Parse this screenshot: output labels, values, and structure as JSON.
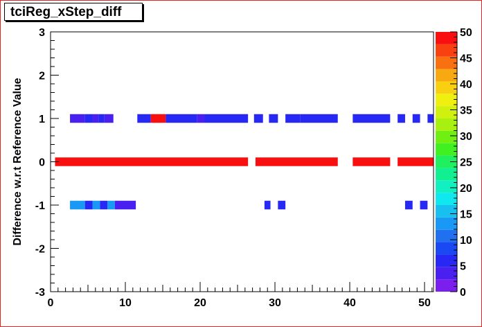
{
  "chart_data": {
    "type": "heatmap",
    "title": "tciReg_xStep_diff",
    "ylabel": "Difference w.r.t Reference Value",
    "xlabel": "",
    "xlim": [
      0,
      51.2
    ],
    "ylim": [
      -3,
      3
    ],
    "xticks": [
      "0",
      "10",
      "20",
      "30",
      "40",
      "50"
    ],
    "yticks": [
      "-3",
      "-2",
      "-1",
      "0",
      "1",
      "2",
      "3"
    ],
    "palette_scale": {
      "min": 0,
      "max": 50,
      "labels": [
        "0",
        "5",
        "10",
        "15",
        "20",
        "25",
        "30",
        "35",
        "40",
        "45",
        "50"
      ],
      "colors": [
        "#7a1fee",
        "#4a20f0",
        "#2828f5",
        "#1a48f2",
        "#2070f0",
        "#1a98f5",
        "#18c0f0",
        "#10e8f0",
        "#10f0c0",
        "#10f090",
        "#20f060",
        "#40f020",
        "#70f010",
        "#a8f010",
        "#d0f010",
        "#f0f010",
        "#f8d010",
        "#f8a810",
        "#f87010",
        "#f84010",
        "#f81010"
      ]
    },
    "cells": [
      {
        "y": 1,
        "x0": 2.6,
        "x1": 4.6,
        "value": 3
      },
      {
        "y": 1,
        "x0": 4.6,
        "x1": 5.6,
        "value": 5
      },
      {
        "y": 1,
        "x0": 5.6,
        "x1": 6.4,
        "value": 3
      },
      {
        "y": 1,
        "x0": 6.4,
        "x1": 7.2,
        "value": 5
      },
      {
        "y": 1,
        "x0": 7.2,
        "x1": 8.4,
        "value": 3
      },
      {
        "y": 1,
        "x0": 11.6,
        "x1": 13.4,
        "value": 7
      },
      {
        "y": 1,
        "x0": 13.4,
        "x1": 15.4,
        "value": 50
      },
      {
        "y": 1,
        "x0": 15.4,
        "x1": 19.6,
        "value": 5
      },
      {
        "y": 1,
        "x0": 19.6,
        "x1": 20.6,
        "value": 3
      },
      {
        "y": 1,
        "x0": 20.6,
        "x1": 26.4,
        "value": 5
      },
      {
        "y": 1,
        "x0": 27.2,
        "x1": 28.4,
        "value": 7
      },
      {
        "y": 1,
        "x0": 29.2,
        "x1": 30.4,
        "value": 7
      },
      {
        "y": 1,
        "x0": 31.4,
        "x1": 33.4,
        "value": 7
      },
      {
        "y": 1,
        "x0": 33.4,
        "x1": 38.4,
        "value": 5
      },
      {
        "y": 1,
        "x0": 40.4,
        "x1": 45.4,
        "value": 5
      },
      {
        "y": 1,
        "x0": 46.4,
        "x1": 47.4,
        "value": 7
      },
      {
        "y": 1,
        "x0": 48.4,
        "x1": 49.4,
        "value": 7
      },
      {
        "y": 1,
        "x0": 50.4,
        "x1": 51.2,
        "value": 5
      },
      {
        "y": 0,
        "x0": 0.6,
        "x1": 26.4,
        "value": 50
      },
      {
        "y": 0,
        "x0": 27.4,
        "x1": 38.4,
        "value": 50
      },
      {
        "y": 0,
        "x0": 40.4,
        "x1": 45.4,
        "value": 50
      },
      {
        "y": 0,
        "x0": 46.4,
        "x1": 51.2,
        "value": 50
      },
      {
        "y": -1,
        "x0": 2.6,
        "x1": 4.6,
        "value": 12
      },
      {
        "y": -1,
        "x0": 4.6,
        "x1": 5.6,
        "value": 7
      },
      {
        "y": -1,
        "x0": 5.6,
        "x1": 6.6,
        "value": 12
      },
      {
        "y": -1,
        "x0": 6.6,
        "x1": 7.6,
        "value": 5
      },
      {
        "y": -1,
        "x0": 7.6,
        "x1": 8.6,
        "value": 12
      },
      {
        "y": -1,
        "x0": 8.6,
        "x1": 11.4,
        "value": 3
      },
      {
        "y": -1,
        "x0": 28.6,
        "x1": 29.4,
        "value": 5
      },
      {
        "y": -1,
        "x0": 30.4,
        "x1": 31.4,
        "value": 5
      },
      {
        "y": -1,
        "x0": 47.4,
        "x1": 48.4,
        "value": 5
      },
      {
        "y": -1,
        "x0": 49.4,
        "x1": 50.4,
        "value": 5
      }
    ]
  }
}
